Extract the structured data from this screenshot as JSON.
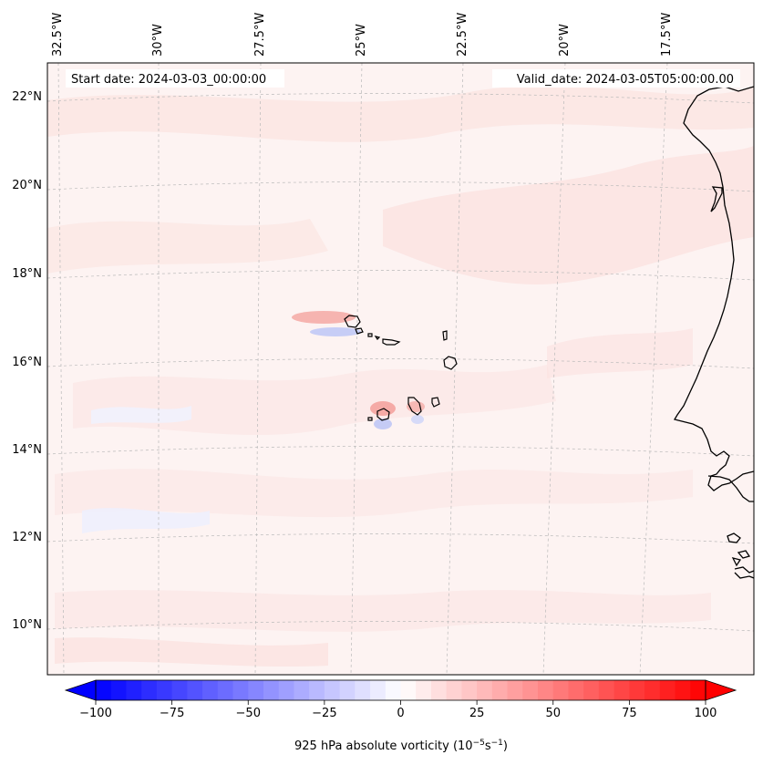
{
  "header": {
    "start_date": "Start date: 2024-03-03_00:00:00",
    "valid_date": "Valid_date: 2024-03-05T05:00:00.00"
  },
  "map": {
    "lon_labels": [
      "32.5°W",
      "30°W",
      "27.5°W",
      "25°W",
      "22.5°W",
      "20°W",
      "17.5°W"
    ],
    "lat_labels": [
      "22°N",
      "20°N",
      "18°N",
      "16°N",
      "14°N",
      "12°N",
      "10°N"
    ],
    "field": "925 hPa absolute vorticity",
    "background_color": "#fdf3f2",
    "coastline_color": "#000000"
  },
  "colorbar": {
    "label": "925 hPa absolute vorticity (10",
    "label_exp1": "−5",
    "label_mid": "s",
    "label_exp2": "−1",
    "label_end": ")",
    "ticks": [
      "−100",
      "−75",
      "−50",
      "−25",
      "0",
      "25",
      "50",
      "75",
      "100"
    ],
    "tick_values": [
      -100,
      -75,
      -50,
      -25,
      0,
      25,
      50,
      75,
      100
    ],
    "min": -100,
    "max": 100,
    "levels": 40,
    "cmap": "bwr",
    "extend": "both"
  }
}
